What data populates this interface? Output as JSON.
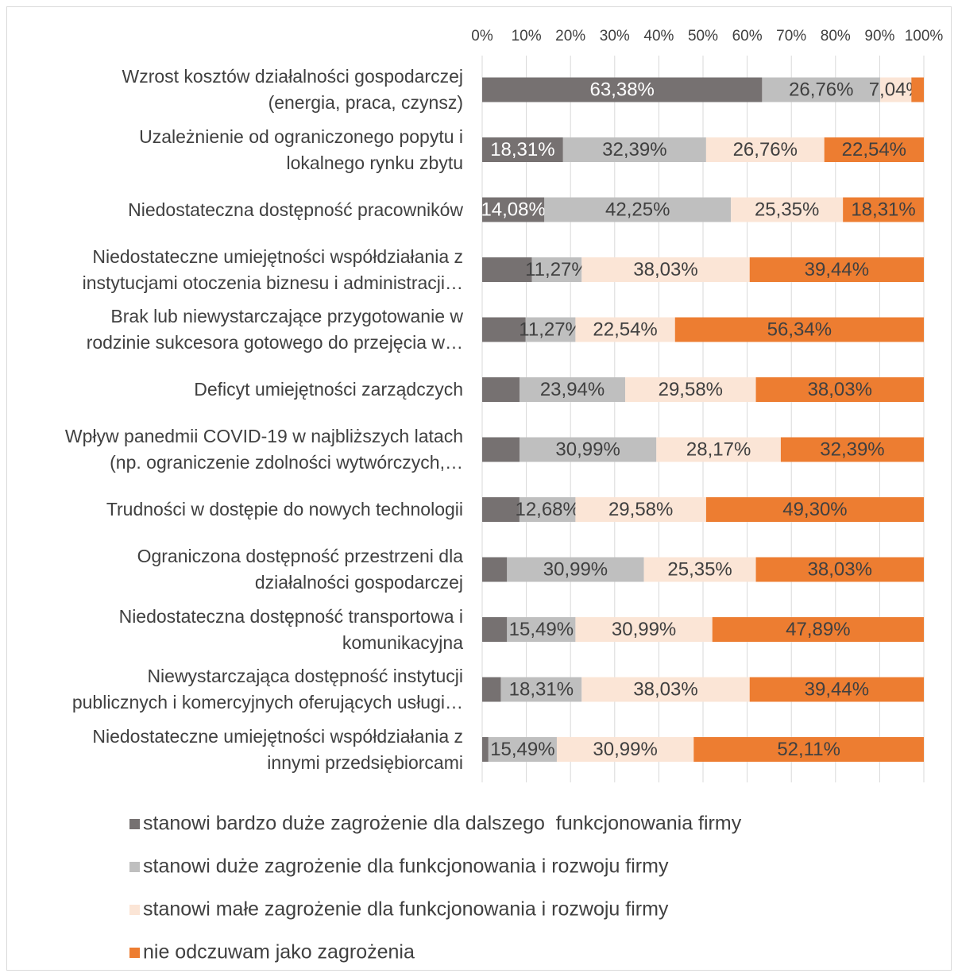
{
  "chart_data": {
    "type": "stacked_barh",
    "categories": [
      "Wzrost kosztów działalności gospodarczej\n(energia, praca, czynsz)",
      "Uzależnienie od ograniczonego popytu i\nlokalnego rynku zbytu",
      "Niedostateczna dostępność pracowników",
      "Niedostateczne umiejętności współdziałania z\ninstytucjami otoczenia biznesu i administracji…",
      "Brak lub niewystarczające przygotowanie w\nrodzinie sukcesora gotowego do przejęcia w…",
      "Deficyt umiejętności zarządczych",
      "Wpływ panedmii COVID-19 w najbliższych latach\n(np. ograniczenie zdolności wytwórczych,…",
      "Trudności w dostępie do nowych technologii",
      "Ograniczona dostępność przestrzeni dla\ndziałalności gospodarczej",
      "Niedostateczna dostępność transportowa i\nkomunikacyjna",
      "Niewystarczająca dostępność instytucji\npublicznych i komercyjnych oferujących usługi…",
      "Niedostateczne umiejętności współdziałania z\ninnymi przedsiębiorcami"
    ],
    "series": [
      {
        "name": "stanowi bardzo duże zagrożenie dla dalszego  funkcjonowania firmy",
        "color": "#767171",
        "values": [
          63.38,
          18.31,
          14.08,
          11.26,
          9.85,
          8.45,
          8.45,
          8.44,
          5.63,
          5.63,
          4.22,
          1.41
        ],
        "value_labels": [
          "63,38%",
          "18,31%",
          "14,08%",
          null,
          null,
          null,
          null,
          null,
          null,
          null,
          null,
          null
        ]
      },
      {
        "name": "stanowi duże zagrożenie dla funkcjonowania i rozwoju firmy",
        "color": "#bfbfbf",
        "values": [
          26.76,
          32.39,
          42.25,
          11.27,
          11.27,
          23.94,
          30.99,
          12.68,
          30.99,
          15.49,
          18.31,
          15.49
        ],
        "value_labels": [
          "26,76%",
          "32,39%",
          "42,25%",
          "11,27%",
          "11,27%",
          "23,94%",
          "30,99%",
          "12,68%",
          "30,99%",
          "15,49%",
          "18,31%",
          "15,49%"
        ]
      },
      {
        "name": "stanowi małe zagrożenie dla funkcjonowania i rozwoju firmy",
        "color": "#fbe5d6",
        "values": [
          7.04,
          26.76,
          25.35,
          38.03,
          22.54,
          29.58,
          28.17,
          29.58,
          25.35,
          30.99,
          38.03,
          30.99
        ],
        "value_labels": [
          "7,04%",
          "26,76%",
          "25,35%",
          "38,03%",
          "22,54%",
          "29,58%",
          "28,17%",
          "29,58%",
          "25,35%",
          "30,99%",
          "38,03%",
          "30,99%"
        ]
      },
      {
        "name": "nie odczuwam jako zagrożenia",
        "color": "#ed7d31",
        "values": [
          2.82,
          22.54,
          18.31,
          39.44,
          56.34,
          38.03,
          32.39,
          49.3,
          38.03,
          47.89,
          39.44,
          52.11
        ],
        "value_labels": [
          null,
          "22,54%",
          "18,31%",
          "39,44%",
          "56,34%",
          "38,03%",
          "32,39%",
          "49,30%",
          "38,03%",
          "47,89%",
          "39,44%",
          "52,11%"
        ]
      }
    ],
    "xlim": [
      0,
      100
    ],
    "xticks": [
      {
        "value": 0,
        "label": "0%"
      },
      {
        "value": 10,
        "label": "10%"
      },
      {
        "value": 20,
        "label": "20%"
      },
      {
        "value": 30,
        "label": "30%"
      },
      {
        "value": 40,
        "label": "40%"
      },
      {
        "value": 50,
        "label": "50%"
      },
      {
        "value": 60,
        "label": "60%"
      },
      {
        "value": 70,
        "label": "70%"
      },
      {
        "value": 80,
        "label": "80%"
      },
      {
        "value": 90,
        "label": "90%"
      },
      {
        "value": 100,
        "label": "100%"
      }
    ],
    "grid": true,
    "legend": "bottom"
  }
}
